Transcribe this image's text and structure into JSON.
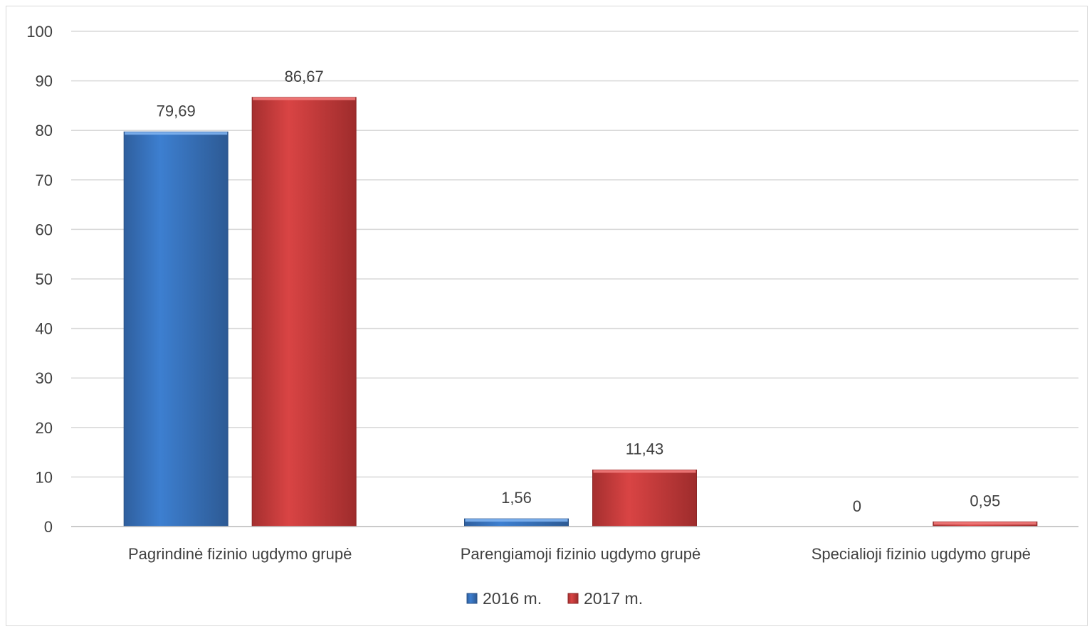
{
  "chart_data": {
    "type": "bar",
    "categories": [
      "Pagrindinė fizinio ugdymo grupė",
      "Parengiamoji fizinio ugdymo grupė",
      "Specialioji fizinio ugdymo grupė"
    ],
    "series": [
      {
        "name": "2016 m.",
        "values": [
          79.69,
          1.56,
          0
        ],
        "labels": [
          "79,69",
          "1,56",
          "0"
        ],
        "color": "#3a76c4"
      },
      {
        "name": "2017 m.",
        "values": [
          86.67,
          11.43,
          0.95
        ],
        "labels": [
          "86,67",
          "11,43",
          "0,95"
        ],
        "color": "#c83a3a"
      }
    ],
    "y_ticks": [
      "0",
      "10",
      "20",
      "30",
      "40",
      "50",
      "60",
      "70",
      "80",
      "90",
      "100"
    ],
    "ylim": [
      0,
      100
    ],
    "grid": true,
    "legend_position": "bottom"
  }
}
